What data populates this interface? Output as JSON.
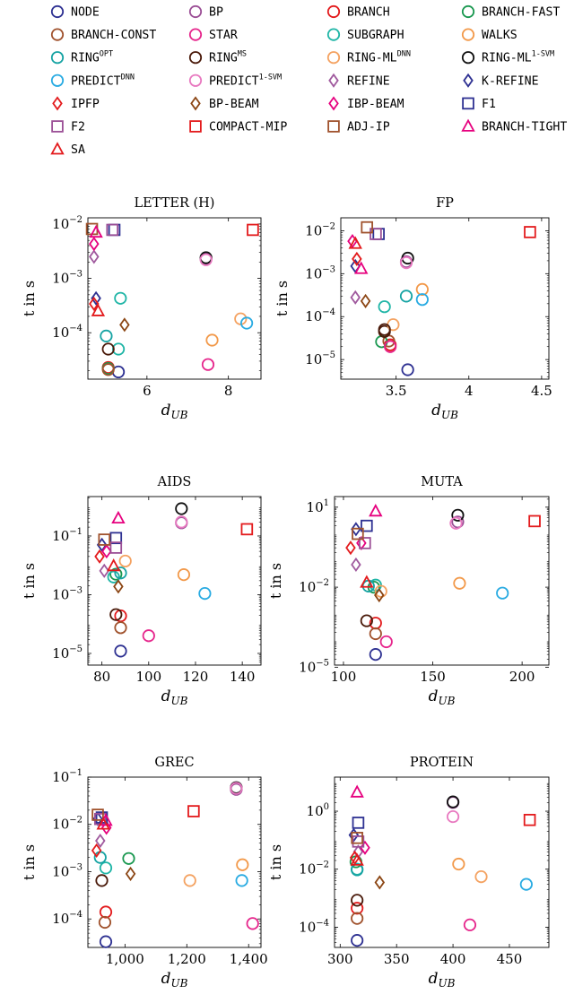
{
  "legend": {
    "items": [
      {
        "label": "NODE",
        "sup": "",
        "marker": "circle",
        "color": "#2e3192"
      },
      {
        "label": "BP",
        "sup": "",
        "marker": "circle",
        "color": "#9b4f96"
      },
      {
        "label": "BRANCH",
        "sup": "",
        "marker": "circle",
        "color": "#e31a1c"
      },
      {
        "label": "BRANCH-FAST",
        "sup": "",
        "marker": "circle",
        "color": "#1a9850"
      },
      {
        "label": "BRANCH-CONST",
        "sup": "",
        "marker": "circle",
        "color": "#a0522d"
      },
      {
        "label": "STAR",
        "sup": "",
        "marker": "circle",
        "color": "#e6268c"
      },
      {
        "label": "SUBGRAPH",
        "sup": "",
        "marker": "circle",
        "color": "#1fb5a6"
      },
      {
        "label": "WALKS",
        "sup": "",
        "marker": "circle",
        "color": "#f2994a"
      },
      {
        "label": "RING",
        "sup": "OPT",
        "marker": "circle",
        "color": "#16a3a3"
      },
      {
        "label": "RING",
        "sup": "MS",
        "marker": "circle",
        "color": "#4a1a0a"
      },
      {
        "label": "RING-ML",
        "sup": "DNN",
        "marker": "circle",
        "color": "#f4a261"
      },
      {
        "label": "RING-ML",
        "sup": "1-SVM",
        "marker": "circle",
        "color": "#111111"
      },
      {
        "label": "PREDICT",
        "sup": "DNN",
        "marker": "circle",
        "color": "#29abe2"
      },
      {
        "label": "PREDICT",
        "sup": "1-SVM",
        "marker": "circle",
        "color": "#e879c0"
      },
      {
        "label": "REFINE",
        "sup": "",
        "marker": "diamond",
        "color": "#a05a9e"
      },
      {
        "label": "K-REFINE",
        "sup": "",
        "marker": "diamond",
        "color": "#2e3192"
      },
      {
        "label": "IPFP",
        "sup": "",
        "marker": "diamond",
        "color": "#e31a1c"
      },
      {
        "label": "BP-BEAM",
        "sup": "",
        "marker": "diamond",
        "color": "#8b4513"
      },
      {
        "label": "IBP-BEAM",
        "sup": "",
        "marker": "diamond",
        "color": "#e6007e"
      },
      {
        "label": "F1",
        "sup": "",
        "marker": "square",
        "color": "#2e3192"
      },
      {
        "label": "F2",
        "sup": "",
        "marker": "square",
        "color": "#9b4f96"
      },
      {
        "label": "COMPACT-MIP",
        "sup": "",
        "marker": "square",
        "color": "#e31a1c"
      },
      {
        "label": "ADJ-IP",
        "sup": "",
        "marker": "square",
        "color": "#a0522d"
      },
      {
        "label": "BRANCH-TIGHT",
        "sup": "",
        "marker": "triangle",
        "color": "#e6007e"
      },
      {
        "label": "SA",
        "sup": "",
        "marker": "triangle",
        "color": "#e31a1c"
      }
    ]
  },
  "chart_data": [
    {
      "type": "scatter",
      "title": "LETTER (H)",
      "xlabel": "d",
      "xlabel_sub": "UB",
      "ylabel": "t in s",
      "xlim": [
        4.55,
        8.8
      ],
      "xticks": [
        6,
        8
      ],
      "xtick_labels": [
        "6",
        "8"
      ],
      "ylog": true,
      "ylim": [
        1.4e-05,
        0.013
      ],
      "yticks": [
        0.0001,
        0.001,
        0.01
      ],
      "ytick_exps": [
        "−4",
        "−3",
        "−2"
      ],
      "points": [
        {
          "s": 0,
          "x": 5.3,
          "y": 1.9e-05
        },
        {
          "s": 1,
          "x": 7.45,
          "y": 0.0023
        },
        {
          "s": 2,
          "x": 5.05,
          "y": 2.3e-05
        },
        {
          "s": 3,
          "x": 5.05,
          "y": 2.2e-05
        },
        {
          "s": 4,
          "x": 5.05,
          "y": 2.1e-05
        },
        {
          "s": 5,
          "x": 7.5,
          "y": 2.6e-05
        },
        {
          "s": 6,
          "x": 5.3,
          "y": 5e-05
        },
        {
          "s": 7,
          "x": 7.6,
          "y": 7.3e-05
        },
        {
          "s": 8,
          "x": 5.0,
          "y": 8.7e-05
        },
        {
          "s": 9,
          "x": 5.05,
          "y": 5e-05
        },
        {
          "s": 10,
          "x": 8.3,
          "y": 0.00018
        },
        {
          "s": 11,
          "x": 7.45,
          "y": 0.0024
        },
        {
          "s": 12,
          "x": 8.45,
          "y": 0.00015
        },
        {
          "s": 13,
          "x": 7.45,
          "y": 0.0022
        },
        {
          "s": 14,
          "x": 4.7,
          "y": 0.0025
        },
        {
          "s": 15,
          "x": 4.75,
          "y": 0.00043
        },
        {
          "s": 16,
          "x": 4.7,
          "y": 0.00034
        },
        {
          "s": 17,
          "x": 5.45,
          "y": 0.00014
        },
        {
          "s": 18,
          "x": 4.7,
          "y": 0.0043
        },
        {
          "s": 19,
          "x": 5.2,
          "y": 0.0078
        },
        {
          "s": 20,
          "x": 5.15,
          "y": 0.0078
        },
        {
          "s": 21,
          "x": 8.6,
          "y": 0.0078
        },
        {
          "s": 22,
          "x": 4.65,
          "y": 0.0081
        },
        {
          "s": 23,
          "x": 4.75,
          "y": 0.007
        },
        {
          "s": 24,
          "x": 4.8,
          "y": 0.00025
        },
        {
          "s": 6,
          "x": 5.35,
          "y": 0.00043
        }
      ]
    },
    {
      "type": "scatter",
      "title": "FP",
      "xlabel": "d",
      "xlabel_sub": "UB",
      "ylabel": "t in s",
      "xlim": [
        3.12,
        4.55
      ],
      "xticks": [
        3.5,
        4,
        4.5
      ],
      "xtick_labels": [
        "3.5",
        "4",
        "4.5"
      ],
      "ylog": true,
      "ylim": [
        3.5e-06,
        0.02
      ],
      "yticks": [
        1e-05,
        0.0001,
        0.001,
        0.01
      ],
      "ytick_exps": [
        "−5",
        "−4",
        "−3",
        "−2"
      ],
      "points": [
        {
          "s": 0,
          "x": 3.58,
          "y": 5.8e-06
        },
        {
          "s": 1,
          "x": 3.57,
          "y": 0.0019
        },
        {
          "s": 2,
          "x": 3.46,
          "y": 2.2e-05
        },
        {
          "s": 3,
          "x": 3.4,
          "y": 2.6e-05
        },
        {
          "s": 4,
          "x": 3.45,
          "y": 2.7e-05
        },
        {
          "s": 5,
          "x": 3.46,
          "y": 2e-05
        },
        {
          "s": 6,
          "x": 3.42,
          "y": 0.00017
        },
        {
          "s": 7,
          "x": 3.68,
          "y": 0.00043
        },
        {
          "s": 8,
          "x": 3.57,
          "y": 0.0003
        },
        {
          "s": 9,
          "x": 3.42,
          "y": 4.5e-05
        },
        {
          "s": 10,
          "x": 3.48,
          "y": 6.5e-05
        },
        {
          "s": 11,
          "x": 3.58,
          "y": 0.0023
        },
        {
          "s": 12,
          "x": 3.68,
          "y": 0.00025
        },
        {
          "s": 13,
          "x": 3.57,
          "y": 0.0018
        },
        {
          "s": 14,
          "x": 3.22,
          "y": 0.00028
        },
        {
          "s": 15,
          "x": 3.22,
          "y": 0.0015
        },
        {
          "s": 16,
          "x": 3.23,
          "y": 0.0022
        },
        {
          "s": 17,
          "x": 3.29,
          "y": 0.00023
        },
        {
          "s": 18,
          "x": 3.2,
          "y": 0.0057
        },
        {
          "s": 19,
          "x": 3.38,
          "y": 0.0084
        },
        {
          "s": 20,
          "x": 3.36,
          "y": 0.0084
        },
        {
          "s": 21,
          "x": 4.42,
          "y": 0.0093
        },
        {
          "s": 22,
          "x": 3.3,
          "y": 0.012
        },
        {
          "s": 23,
          "x": 3.26,
          "y": 0.0013
        },
        {
          "s": 24,
          "x": 3.22,
          "y": 0.005
        },
        {
          "s": 9,
          "x": 3.42,
          "y": 5e-05
        }
      ]
    },
    {
      "type": "scatter",
      "title": "AIDS",
      "xlabel": "d",
      "xlabel_sub": "UB",
      "ylabel": "t in s",
      "xlim": [
        74,
        148
      ],
      "xticks": [
        80,
        100,
        120,
        140
      ],
      "xtick_labels": [
        "80",
        "100",
        "120",
        "140"
      ],
      "ylog": true,
      "ylim": [
        4e-06,
        2.2
      ],
      "yticks": [
        1e-05,
        0.001,
        0.1
      ],
      "ytick_exps": [
        "−5",
        "−3",
        "−1"
      ],
      "points": [
        {
          "s": 0,
          "x": 88,
          "y": 1.2e-05
        },
        {
          "s": 1,
          "x": 114,
          "y": 0.28
        },
        {
          "s": 2,
          "x": 88,
          "y": 0.00019
        },
        {
          "s": 3,
          "x": 86,
          "y": 0.005
        },
        {
          "s": 4,
          "x": 88,
          "y": 7.5e-05
        },
        {
          "s": 5,
          "x": 100,
          "y": 4e-05
        },
        {
          "s": 6,
          "x": 85,
          "y": 0.004
        },
        {
          "s": 7,
          "x": 115,
          "y": 0.0048
        },
        {
          "s": 8,
          "x": 88,
          "y": 0.0055
        },
        {
          "s": 9,
          "x": 86,
          "y": 0.00021
        },
        {
          "s": 10,
          "x": 90,
          "y": 0.014
        },
        {
          "s": 11,
          "x": 114,
          "y": 0.85
        },
        {
          "s": 12,
          "x": 124,
          "y": 0.0011
        },
        {
          "s": 13,
          "x": 114,
          "y": 0.3
        },
        {
          "s": 14,
          "x": 81,
          "y": 0.0065
        },
        {
          "s": 15,
          "x": 80,
          "y": 0.05
        },
        {
          "s": 16,
          "x": 79,
          "y": 0.02
        },
        {
          "s": 17,
          "x": 87,
          "y": 0.0019
        },
        {
          "s": 18,
          "x": 82,
          "y": 0.03
        },
        {
          "s": 19,
          "x": 86,
          "y": 0.085
        },
        {
          "s": 20,
          "x": 86,
          "y": 0.04
        },
        {
          "s": 21,
          "x": 142,
          "y": 0.17
        },
        {
          "s": 22,
          "x": 81,
          "y": 0.075
        },
        {
          "s": 23,
          "x": 87,
          "y": 0.4
        },
        {
          "s": 24,
          "x": 85,
          "y": 0.0095
        }
      ]
    },
    {
      "type": "scatter",
      "title": "MUTA",
      "xlabel": "d",
      "xlabel_sub": "UB",
      "ylabel": "t in s",
      "xlim": [
        95,
        215
      ],
      "xticks": [
        100,
        150,
        200
      ],
      "xtick_labels": [
        "100",
        "150",
        "200"
      ],
      "ylog": true,
      "ylim": [
        1.2e-05,
        25
      ],
      "yticks": [
        1e-05,
        0.01,
        10
      ],
      "ytick_exps": [
        "−5",
        "−2",
        "1"
      ],
      "points": [
        {
          "s": 0,
          "x": 118,
          "y": 3e-05
        },
        {
          "s": 1,
          "x": 164,
          "y": 2.8
        },
        {
          "s": 2,
          "x": 118,
          "y": 0.00045
        },
        {
          "s": 3,
          "x": 117,
          "y": 0.01
        },
        {
          "s": 4,
          "x": 118,
          "y": 0.00018
        },
        {
          "s": 5,
          "x": 124,
          "y": 9e-05
        },
        {
          "s": 6,
          "x": 118,
          "y": 0.012
        },
        {
          "s": 7,
          "x": 165,
          "y": 0.014
        },
        {
          "s": 8,
          "x": 114,
          "y": 0.011
        },
        {
          "s": 9,
          "x": 113,
          "y": 0.00055
        },
        {
          "s": 10,
          "x": 121,
          "y": 0.007
        },
        {
          "s": 11,
          "x": 164,
          "y": 5.0
        },
        {
          "s": 12,
          "x": 189,
          "y": 0.006
        },
        {
          "s": 13,
          "x": 163,
          "y": 2.5
        },
        {
          "s": 14,
          "x": 107,
          "y": 0.07
        },
        {
          "s": 15,
          "x": 107,
          "y": 1.5
        },
        {
          "s": 16,
          "x": 104,
          "y": 0.3
        },
        {
          "s": 17,
          "x": 120,
          "y": 0.005
        },
        {
          "s": 18,
          "x": 110,
          "y": 0.45
        },
        {
          "s": 19,
          "x": 113,
          "y": 2.0
        },
        {
          "s": 20,
          "x": 112,
          "y": 0.45
        },
        {
          "s": 21,
          "x": 207,
          "y": 3.0
        },
        {
          "s": 22,
          "x": 108,
          "y": 1.0
        },
        {
          "s": 23,
          "x": 118,
          "y": 7.0
        },
        {
          "s": 24,
          "x": 113,
          "y": 0.015
        }
      ]
    },
    {
      "type": "scatter",
      "title": "GREC",
      "xlabel": "d",
      "xlabel_sub": "UB",
      "ylabel": "t in s",
      "xlim": [
        880,
        1440
      ],
      "xticks": [
        1000,
        1200,
        1400
      ],
      "xtick_labels": [
        "1,000",
        "1,200",
        "1,400"
      ],
      "ylog": true,
      "ylim": [
        2.5e-05,
        0.1
      ],
      "yticks": [
        0.0001,
        0.001,
        0.01,
        0.1
      ],
      "ytick_exps": [
        "−4",
        "−3",
        "−2",
        "−1"
      ],
      "points": [
        {
          "s": 0,
          "x": 938,
          "y": 3.3e-05
        },
        {
          "s": 1,
          "x": 1360,
          "y": 0.055
        },
        {
          "s": 2,
          "x": 938,
          "y": 0.00014
        },
        {
          "s": 3,
          "x": 1012,
          "y": 0.0019
        },
        {
          "s": 4,
          "x": 935,
          "y": 8.5e-05
        },
        {
          "s": 5,
          "x": 1413,
          "y": 8e-05
        },
        {
          "s": 6,
          "x": 938,
          "y": 0.0012
        },
        {
          "s": 7,
          "x": 1380,
          "y": 0.0014
        },
        {
          "s": 8,
          "x": 920,
          "y": 0.002
        },
        {
          "s": 9,
          "x": 925,
          "y": 0.00065
        },
        {
          "s": 10,
          "x": 1210,
          "y": 0.00065
        },
        {
          "s": 11,
          "x": 1360,
          "y": 0.06
        },
        {
          "s": 12,
          "x": 1378,
          "y": 0.00065
        },
        {
          "s": 13,
          "x": 1360,
          "y": 0.058
        },
        {
          "s": 14,
          "x": 920,
          "y": 0.0045
        },
        {
          "s": 15,
          "x": 912,
          "y": 0.013
        },
        {
          "s": 16,
          "x": 908,
          "y": 0.0028
        },
        {
          "s": 17,
          "x": 1018,
          "y": 0.0009
        },
        {
          "s": 18,
          "x": 940,
          "y": 0.0085
        },
        {
          "s": 19,
          "x": 925,
          "y": 0.014
        },
        {
          "s": 20,
          "x": 920,
          "y": 0.013
        },
        {
          "s": 21,
          "x": 1222,
          "y": 0.019
        },
        {
          "s": 22,
          "x": 912,
          "y": 0.016
        },
        {
          "s": 23,
          "x": 938,
          "y": 0.012
        },
        {
          "s": 24,
          "x": 930,
          "y": 0.01
        }
      ]
    },
    {
      "type": "scatter",
      "title": "PROTEIN",
      "xlabel": "d",
      "xlabel_sub": "UB",
      "ylabel": "t in s",
      "xlim": [
        295,
        485
      ],
      "xticks": [
        300,
        350,
        400,
        450
      ],
      "xtick_labels": [
        "300",
        "350",
        "400",
        "450"
      ],
      "ylog": true,
      "ylim": [
        2e-05,
        15
      ],
      "yticks": [
        0.0001,
        0.01,
        1
      ],
      "ytick_exps": [
        "−4",
        "−2",
        "0"
      ],
      "points": [
        {
          "s": 0,
          "x": 315,
          "y": 3.5e-05
        },
        {
          "s": 1,
          "x": 400,
          "y": 2.0
        },
        {
          "s": 2,
          "x": 315,
          "y": 0.00045
        },
        {
          "s": 3,
          "x": 314,
          "y": 0.018
        },
        {
          "s": 4,
          "x": 315,
          "y": 0.0002
        },
        {
          "s": 5,
          "x": 415,
          "y": 0.00012
        },
        {
          "s": 6,
          "x": 315,
          "y": 0.01
        },
        {
          "s": 7,
          "x": 405,
          "y": 0.015
        },
        {
          "s": 8,
          "x": 315,
          "y": 0.0095
        },
        {
          "s": 9,
          "x": 315,
          "y": 0.00085
        },
        {
          "s": 10,
          "x": 425,
          "y": 0.0055
        },
        {
          "s": 11,
          "x": 400,
          "y": 2.1
        },
        {
          "s": 12,
          "x": 465,
          "y": 0.003
        },
        {
          "s": 13,
          "x": 400,
          "y": 0.65
        },
        {
          "s": 14,
          "x": 316,
          "y": 0.04
        },
        {
          "s": 15,
          "x": 312,
          "y": 0.15
        },
        {
          "s": 16,
          "x": 313,
          "y": 0.025
        },
        {
          "s": 17,
          "x": 335,
          "y": 0.0035
        },
        {
          "s": 18,
          "x": 322,
          "y": 0.055
        },
        {
          "s": 19,
          "x": 316,
          "y": 0.4
        },
        {
          "s": 20,
          "x": 316,
          "y": 0.09
        },
        {
          "s": 21,
          "x": 468,
          "y": 0.5
        },
        {
          "s": 22,
          "x": 315,
          "y": 0.12
        },
        {
          "s": 23,
          "x": 315,
          "y": 4.5
        },
        {
          "s": 24,
          "x": 315,
          "y": 0.02
        }
      ]
    }
  ]
}
